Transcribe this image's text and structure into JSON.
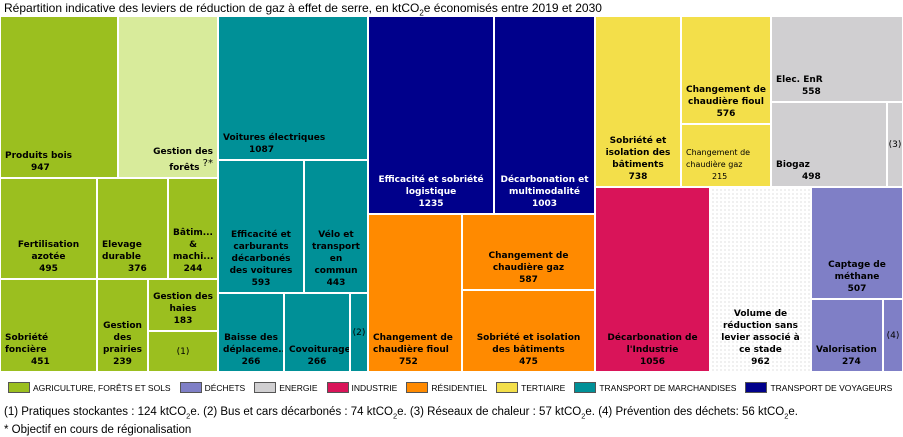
{
  "title": {
    "prefix": "Répartition indicative des leviers de réduction de gaz à effet de serre, en ktCO",
    "sub": "2",
    "suffix": "e économisés entre 2019 et 2030"
  },
  "colors": {
    "agriculture": "#9bbf1f",
    "agriculture_light": "#d8eb9b",
    "dechets": "#7f7fc6",
    "energie": "#d0cfd1",
    "industrie": "#d91459",
    "residentiel": "#ff8a00",
    "tertiaire": "#f3df4a",
    "transport_marchandises": "#009097",
    "transport_voyageurs": "#00008b"
  },
  "chart_data": {
    "type": "treemap",
    "title": "Répartition indicative des leviers de réduction de gaz à effet de serre, en ktCO2e économisés entre 2019 et 2030",
    "unit": "ktCO2e",
    "categories": [
      "AGRICULTURE, FORÊTS ET SOLS",
      "DÉCHETS",
      "ENERGIE",
      "INDUSTRIE",
      "RÉSIDENTIEL",
      "TERTIAIRE",
      "TRANSPORT DE MARCHANDISES",
      "TRANSPORT DE VOYAGEURS"
    ],
    "cells": [
      {
        "label": "Produits bois",
        "value": 947,
        "category": "AGRICULTURE, FORÊTS ET SOLS",
        "display": "947"
      },
      {
        "label": "Gestion des forêts",
        "value": null,
        "category": "AGRICULTURE, FORÊTS ET SOLS",
        "display": "?*"
      },
      {
        "label": "Fertilisation azotée",
        "value": 495,
        "category": "AGRICULTURE, FORÊTS ET SOLS",
        "display": "495"
      },
      {
        "label": "Elevage durable",
        "value": 376,
        "category": "AGRICULTURE, FORÊTS ET SOLS",
        "display": "376"
      },
      {
        "label": "Bâtim... & machi...",
        "value": 244,
        "category": "AGRICULTURE, FORÊTS ET SOLS",
        "display": "244"
      },
      {
        "label": "Sobriété foncière",
        "value": 451,
        "category": "AGRICULTURE, FORÊTS ET SOLS",
        "display": "451"
      },
      {
        "label": "Gestion des prairies",
        "value": 239,
        "category": "AGRICULTURE, FORÊTS ET SOLS",
        "display": "239"
      },
      {
        "label": "Gestion des haies",
        "value": 183,
        "category": "AGRICULTURE, FORÊTS ET SOLS",
        "display": "183"
      },
      {
        "label": "(1)",
        "value": 124,
        "category": "AGRICULTURE, FORÊTS ET SOLS",
        "display": ""
      },
      {
        "label": "Voitures électriques",
        "value": 1087,
        "category": "TRANSPORT DE MARCHANDISES",
        "display": "1087"
      },
      {
        "label": "Efficacité et carburants décarbonés des voitures",
        "value": 593,
        "category": "TRANSPORT DE MARCHANDISES",
        "display": "593"
      },
      {
        "label": "Vélo et transport en commun",
        "value": 443,
        "category": "TRANSPORT DE MARCHANDISES",
        "display": "443"
      },
      {
        "label": "Baisse des déplaceme...",
        "value": 266,
        "category": "TRANSPORT DE MARCHANDISES",
        "display": "266"
      },
      {
        "label": "Covoiturage",
        "value": 266,
        "category": "TRANSPORT DE MARCHANDISES",
        "display": "266"
      },
      {
        "label": "(2)",
        "value": 74,
        "category": "TRANSPORT DE MARCHANDISES",
        "display": ""
      },
      {
        "label": "Efficacité et sobriété logistique",
        "value": 1235,
        "category": "TRANSPORT DE VOYAGEURS",
        "display": "1235"
      },
      {
        "label": "Décarbonation et multimodalité",
        "value": 1003,
        "category": "TRANSPORT DE VOYAGEURS",
        "display": "1003"
      },
      {
        "label": "Changement de chaudière fioul",
        "value": 752,
        "category": "RÉSIDENTIEL",
        "display": "752"
      },
      {
        "label": "Changement de chaudière gaz",
        "value": 587,
        "category": "RÉSIDENTIEL",
        "display": "587"
      },
      {
        "label": "Sobriété et isolation des bâtiments",
        "value": 475,
        "category": "RÉSIDENTIEL",
        "display": "475"
      },
      {
        "label": "Sobriété et isolation des bâtiments",
        "value": 738,
        "category": "TERTIAIRE",
        "display": "738"
      },
      {
        "label": "Changement de chaudière  fioul",
        "value": 576,
        "category": "TERTIAIRE",
        "display": "576"
      },
      {
        "label": "Changement de chaudière gaz",
        "value": 215,
        "category": "TERTIAIRE",
        "display": "215"
      },
      {
        "label": "Elec. EnR",
        "value": 558,
        "category": "ENERGIE",
        "display": "558"
      },
      {
        "label": "Biogaz",
        "value": 498,
        "category": "ENERGIE",
        "display": "498"
      },
      {
        "label": "(3)",
        "value": 57,
        "category": "ENERGIE",
        "display": ""
      },
      {
        "label": "Décarbonation de l'Industrie",
        "value": 1056,
        "category": "INDUSTRIE",
        "display": "1056"
      },
      {
        "label": "Volume de réduction sans levier associé à ce stade",
        "value": 962,
        "category": null,
        "display": "962"
      },
      {
        "label": "Captage de méthane",
        "value": 507,
        "category": "DÉCHETS",
        "display": "507"
      },
      {
        "label": "Valorisation",
        "value": 274,
        "category": "DÉCHETS",
        "display": "274"
      },
      {
        "label": "(4)",
        "value": 56,
        "category": "DÉCHETS",
        "display": ""
      }
    ],
    "legend_position": "bottom"
  },
  "legend": [
    {
      "label": "AGRICULTURE, FORÊTS ET SOLS",
      "color": "#9bbf1f"
    },
    {
      "label": "DÉCHETS",
      "color": "#7f7fc6"
    },
    {
      "label": "ENERGIE",
      "color": "#d0cfd1"
    },
    {
      "label": "INDUSTRIE",
      "color": "#d91459"
    },
    {
      "label": "RÉSIDENTIEL",
      "color": "#ff8a00"
    },
    {
      "label": "TERTIAIRE",
      "color": "#f3df4a"
    },
    {
      "label": "TRANSPORT DE MARCHANDISES",
      "color": "#009097"
    },
    {
      "label": "TRANSPORT DE VOYAGEURS",
      "color": "#00008b"
    }
  ],
  "notes": {
    "line1": [
      {
        "t": "(1) Pratiques stockantes : 124 ktCO"
      },
      {
        "s": "2"
      },
      {
        "t": "e. (2) Bus et cars décarbonés : 74 ktCO"
      },
      {
        "s": "2"
      },
      {
        "t": "e. (3) Réseaux de chaleur : 57 ktCO"
      },
      {
        "s": "2"
      },
      {
        "t": "e. (4) Prévention des déchets: 56 ktCO"
      },
      {
        "s": "2"
      },
      {
        "t": "e."
      }
    ],
    "line2": "* Objectif en cours de régionalisation"
  }
}
